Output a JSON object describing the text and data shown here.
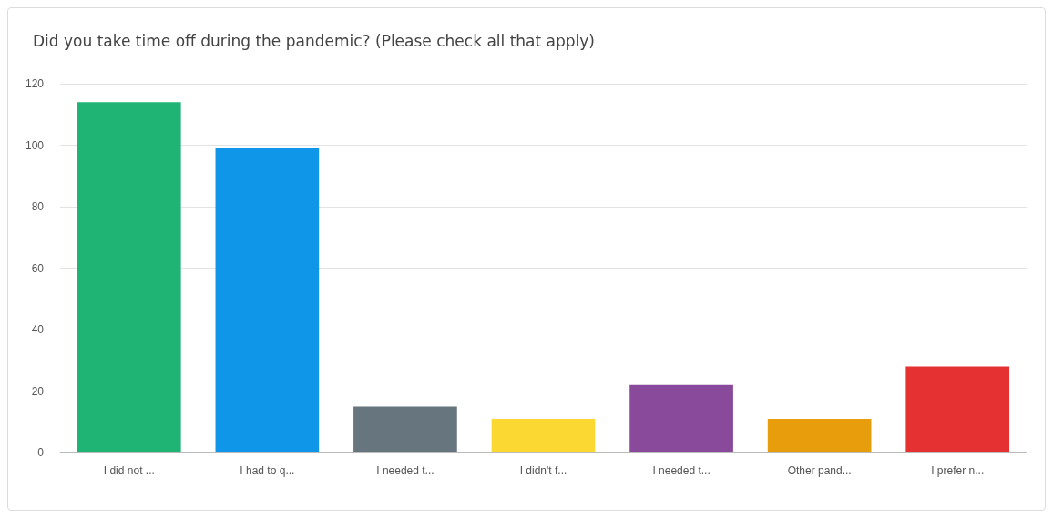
{
  "chart_data": {
    "type": "bar",
    "title": "Did you take time off during the pandemic? (Please check all that apply)",
    "categories": [
      "I did not ...",
      "I had to q...",
      "I needed t...",
      "I didn't f...",
      "I needed t...",
      "Other pand...",
      "I prefer n..."
    ],
    "values": [
      114,
      99,
      15,
      11,
      22,
      11,
      28
    ],
    "colors": [
      "#1fb473",
      "#0f96e8",
      "#67757f",
      "#fbd932",
      "#8a4a9c",
      "#e89d0d",
      "#e53131"
    ],
    "ylim": [
      0,
      120
    ],
    "yticks": [
      0,
      20,
      40,
      60,
      80,
      100,
      120
    ],
    "grid": "y"
  }
}
